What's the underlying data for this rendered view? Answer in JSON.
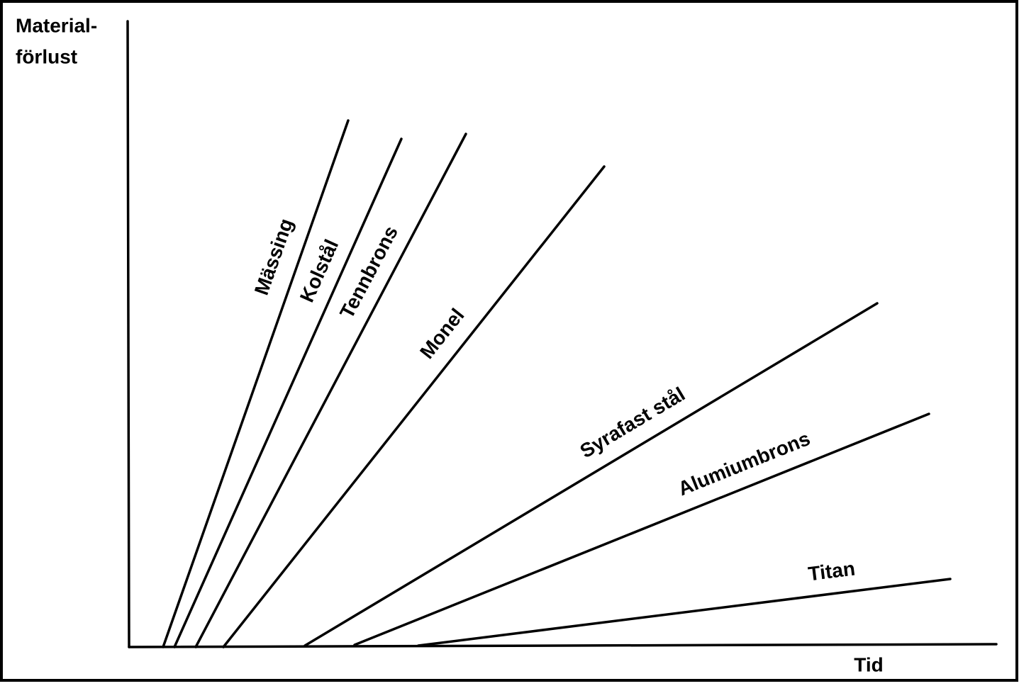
{
  "y_axis_label": [
    "Material-",
    "förlust"
  ],
  "x_axis_label": "Tid",
  "lines": [
    {
      "label": "Mässing"
    },
    {
      "label": "Kolstål"
    },
    {
      "label": "Tennbrons"
    },
    {
      "label": "Monel"
    },
    {
      "label": "Syrafast stål"
    },
    {
      "label": "Alumiumbrons"
    },
    {
      "label": "Titan"
    }
  ]
}
